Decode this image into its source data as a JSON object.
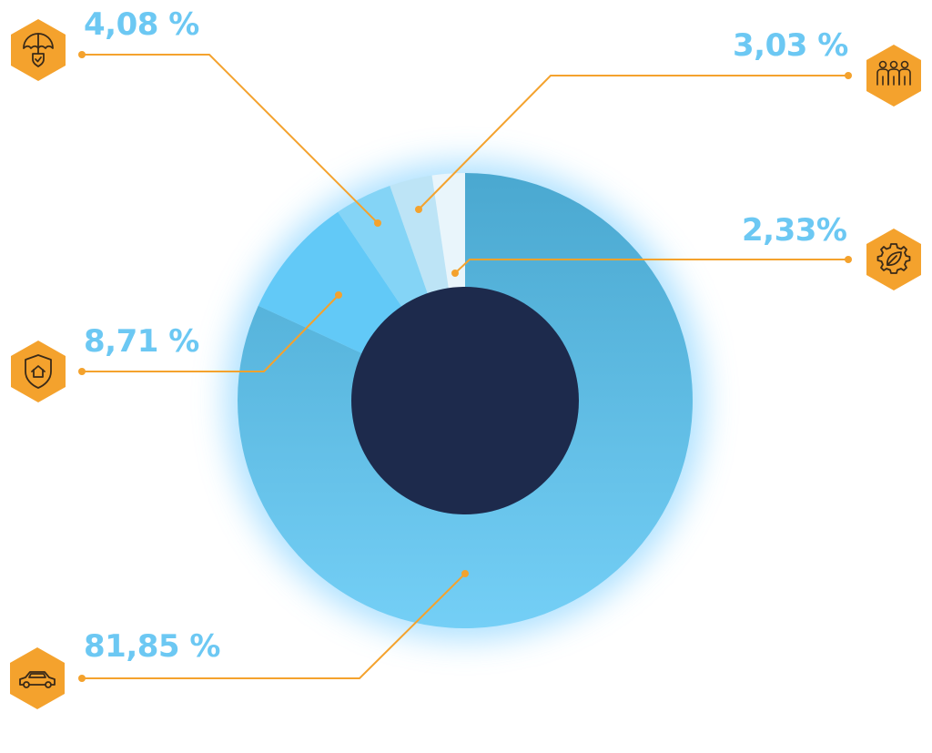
{
  "chart_data": {
    "type": "pie",
    "variant": "donut",
    "slices": [
      {
        "label": "81,85 %",
        "value": 81.85,
        "icon": "car-icon",
        "color": "#5ab8e3"
      },
      {
        "label": "8,71 %",
        "value": 8.71,
        "icon": "shield-home-icon",
        "color": "#62c9f7"
      },
      {
        "label": "4,08 %",
        "value": 4.08,
        "icon": "umbrella-shield-icon",
        "color": "#84d4f6"
      },
      {
        "label": "3,03 %",
        "value": 3.03,
        "icon": "family-icon",
        "color": "#bde4f6"
      },
      {
        "label": "2,33%",
        "value": 2.33,
        "icon": "gear-leaf-icon",
        "color": "#e9f5fb"
      }
    ],
    "center_color": "#1d2a4c",
    "connector_color": "#f4a22d",
    "icon_badge_color": "#f4a22d",
    "label_color": "#6cc8f3"
  }
}
